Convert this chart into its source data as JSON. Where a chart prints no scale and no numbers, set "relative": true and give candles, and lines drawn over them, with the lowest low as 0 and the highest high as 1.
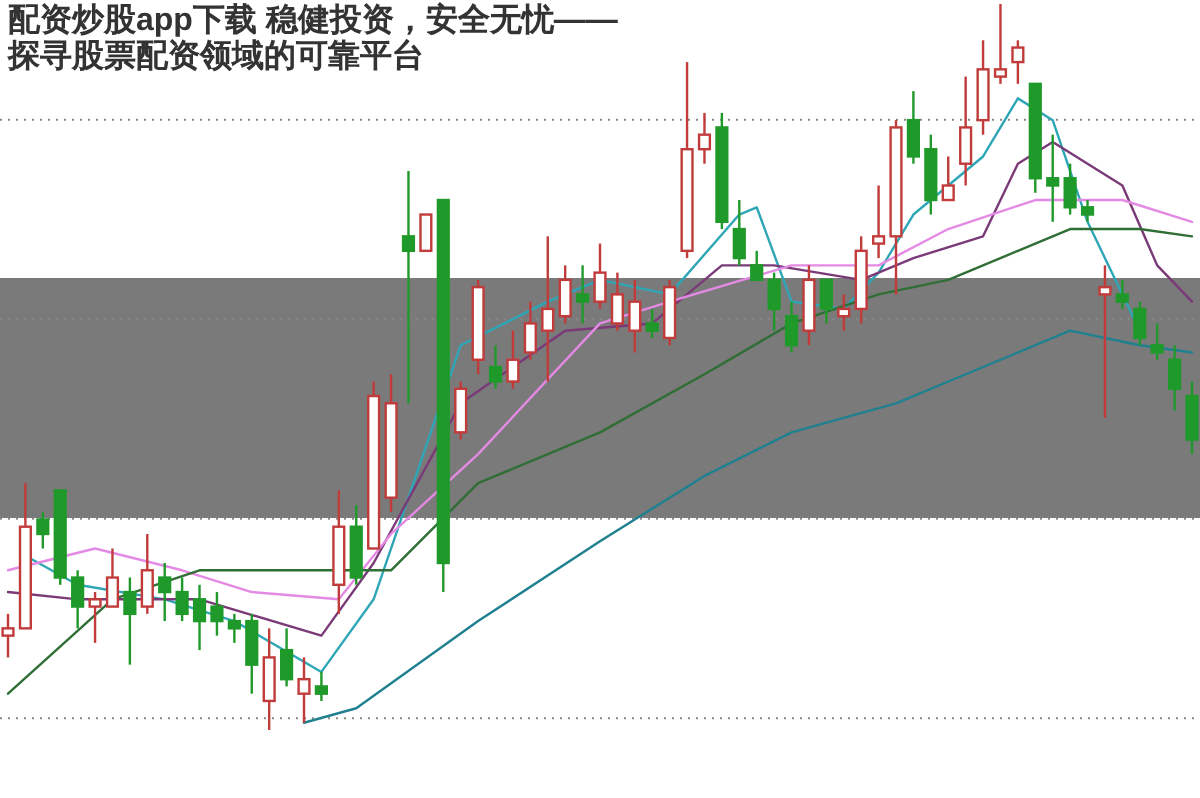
{
  "chart_data": {
    "type": "candlestick",
    "title": "配资炒股app下载 稳健投资，安全无忧——探寻股票配资领域的可靠平台",
    "relative": true,
    "grid": "y",
    "categories": [
      null,
      null,
      null,
      null,
      null,
      null,
      null,
      null,
      null,
      null,
      null,
      null,
      null,
      null,
      null,
      null,
      null,
      null,
      null,
      null,
      null,
      null,
      null,
      null,
      null,
      null,
      null,
      null,
      null,
      null,
      null,
      null,
      null,
      null,
      null,
      null,
      null,
      null,
      null,
      null,
      null,
      null,
      null,
      null,
      null,
      null,
      null,
      null,
      null,
      null,
      null,
      null,
      null,
      null,
      null,
      null,
      null,
      null,
      null,
      null,
      null,
      null,
      null,
      null,
      null,
      null,
      null,
      null,
      null
    ],
    "ohlc": [
      [
        0.13,
        0.16,
        0.1,
        0.14
      ],
      [
        0.14,
        0.34,
        0.14,
        0.28
      ],
      [
        0.29,
        0.3,
        0.25,
        0.27
      ],
      [
        0.33,
        0.33,
        0.2,
        0.21
      ],
      [
        0.21,
        0.22,
        0.14,
        0.17
      ],
      [
        0.17,
        0.19,
        0.12,
        0.18
      ],
      [
        0.17,
        0.25,
        0.17,
        0.21
      ],
      [
        0.19,
        0.21,
        0.09,
        0.16
      ],
      [
        0.17,
        0.27,
        0.16,
        0.22
      ],
      [
        0.21,
        0.23,
        0.15,
        0.19
      ],
      [
        0.19,
        0.21,
        0.15,
        0.16
      ],
      [
        0.18,
        0.2,
        0.11,
        0.15
      ],
      [
        0.17,
        0.19,
        0.13,
        0.15
      ],
      [
        0.15,
        0.16,
        0.12,
        0.14
      ],
      [
        0.15,
        0.16,
        0.05,
        0.09
      ],
      [
        0.04,
        0.14,
        0,
        0.1
      ],
      [
        0.11,
        0.14,
        0.06,
        0.07
      ],
      [
        0.05,
        0.1,
        0.01,
        0.07
      ],
      [
        0.06,
        0.08,
        0.04,
        0.05
      ],
      [
        0.2,
        0.33,
        0.16,
        0.28
      ],
      [
        0.28,
        0.31,
        0.2,
        0.21
      ],
      [
        0.25,
        0.48,
        0.25,
        0.46
      ],
      [
        0.32,
        0.49,
        0.3,
        0.45
      ],
      [
        0.68,
        0.77,
        0.45,
        0.66
      ],
      [
        0.66,
        0.71,
        0.66,
        0.71
      ],
      [
        0.73,
        0.73,
        0.19,
        0.23
      ],
      [
        0.41,
        0.48,
        0.4,
        0.47
      ],
      [
        0.51,
        0.62,
        0.49,
        0.61
      ],
      [
        0.5,
        0.53,
        0.47,
        0.48
      ],
      [
        0.48,
        0.55,
        0.47,
        0.51
      ],
      [
        0.52,
        0.59,
        0.51,
        0.56
      ],
      [
        0.55,
        0.68,
        0.48,
        0.58
      ],
      [
        0.57,
        0.64,
        0.56,
        0.62
      ],
      [
        0.6,
        0.64,
        0.56,
        0.59
      ],
      [
        0.59,
        0.67,
        0.58,
        0.63
      ],
      [
        0.56,
        0.63,
        0.55,
        0.6
      ],
      [
        0.55,
        0.62,
        0.52,
        0.59
      ],
      [
        0.56,
        0.58,
        0.54,
        0.55
      ],
      [
        0.54,
        0.62,
        0.53,
        0.61
      ],
      [
        0.66,
        0.92,
        0.65,
        0.8
      ],
      [
        0.8,
        0.85,
        0.78,
        0.82
      ],
      [
        0.83,
        0.85,
        0.69,
        0.7
      ],
      [
        0.69,
        0.73,
        0.64,
        0.65
      ],
      [
        0.64,
        0.66,
        0.62,
        0.62
      ],
      [
        0.62,
        0.63,
        0.55,
        0.58
      ],
      [
        0.57,
        0.59,
        0.52,
        0.53
      ],
      [
        0.55,
        0.64,
        0.53,
        0.62
      ],
      [
        0.62,
        0.62,
        0.56,
        0.58
      ],
      [
        0.57,
        0.6,
        0.55,
        0.58
      ],
      [
        0.58,
        0.68,
        0.56,
        0.66
      ],
      [
        0.67,
        0.75,
        0.65,
        0.68
      ],
      [
        0.68,
        0.84,
        0.6,
        0.83
      ],
      [
        0.84,
        0.88,
        0.78,
        0.79
      ],
      [
        0.8,
        0.82,
        0.71,
        0.73
      ],
      [
        0.73,
        0.79,
        0.73,
        0.75
      ],
      [
        0.78,
        0.9,
        0.75,
        0.83
      ],
      [
        0.84,
        0.95,
        0.82,
        0.91
      ],
      [
        0.9,
        1,
        0.89,
        0.91
      ],
      [
        0.92,
        0.95,
        0.89,
        0.94
      ],
      [
        0.89,
        0.89,
        0.74,
        0.76
      ],
      [
        0.76,
        0.82,
        0.7,
        0.75
      ],
      [
        0.76,
        0.78,
        0.71,
        0.72
      ],
      [
        0.72,
        0.73,
        0.7,
        0.71
      ],
      [
        0.6,
        0.64,
        0.43,
        0.61
      ],
      [
        0.6,
        0.62,
        0.58,
        0.59
      ],
      [
        0.58,
        0.59,
        0.53,
        0.54
      ],
      [
        0.53,
        0.56,
        0.51,
        0.52
      ],
      [
        0.51,
        0.53,
        0.44,
        0.47
      ],
      [
        0.46,
        0.48,
        0.38,
        0.4
      ]
    ],
    "series": [
      {
        "type": "line",
        "color": "#2ea6b6",
        "values": [
          null,
          0.24,
          null,
          null,
          0.2,
          null,
          null,
          null,
          null,
          0.18,
          null,
          null,
          null,
          0.15,
          null,
          null,
          null,
          null,
          0.08,
          null,
          null,
          0.18,
          null,
          null,
          null,
          null,
          0.53,
          null,
          null,
          null,
          null,
          0.59,
          null,
          null,
          0.62,
          null,
          null,
          null,
          0.6,
          null,
          null,
          null,
          0.71,
          0.72,
          null,
          0.59,
          null,
          null,
          0.58,
          null,
          0.63,
          null,
          0.71,
          null,
          null,
          null,
          0.79,
          null,
          0.87,
          null,
          0.84,
          null,
          0.7,
          null,
          null,
          0.55,
          null,
          null,
          null
        ]
      },
      {
        "type": "line",
        "color": "#7a3a78",
        "values": [
          0.19,
          null,
          null,
          null,
          0.18,
          null,
          null,
          null,
          null,
          null,
          null,
          0.18,
          null,
          null,
          null,
          null,
          null,
          null,
          0.13,
          null,
          null,
          0.23,
          null,
          null,
          null,
          null,
          0.45,
          null,
          null,
          null,
          null,
          null,
          0.55,
          null,
          null,
          null,
          null,
          0.56,
          null,
          null,
          null,
          0.64,
          null,
          null,
          0.64,
          null,
          null,
          null,
          null,
          0.62,
          null,
          null,
          0.65,
          null,
          null,
          null,
          0.68,
          null,
          0.78,
          null,
          0.81,
          null,
          null,
          null,
          0.75,
          null,
          0.64,
          null,
          0.59
        ]
      },
      {
        "type": "line",
        "color": "#e48ae4",
        "values": [
          0.22,
          null,
          null,
          null,
          null,
          0.25,
          null,
          null,
          null,
          null,
          0.22,
          null,
          null,
          null,
          0.19,
          null,
          null,
          null,
          null,
          0.18,
          null,
          null,
          0.27,
          null,
          null,
          null,
          null,
          0.38,
          null,
          null,
          null,
          null,
          null,
          null,
          0.56,
          null,
          null,
          null,
          0.59,
          null,
          null,
          null,
          null,
          null,
          null,
          0.64,
          null,
          null,
          null,
          null,
          0.64,
          null,
          null,
          null,
          0.69,
          null,
          null,
          null,
          null,
          0.73,
          null,
          null,
          null,
          null,
          0.73,
          null,
          null,
          null,
          0.7
        ]
      },
      {
        "type": "line",
        "color": "#2f6e35",
        "values": [
          0.05,
          null,
          null,
          null,
          null,
          null,
          0.18,
          null,
          null,
          null,
          null,
          0.22,
          null,
          null,
          null,
          null,
          null,
          null,
          0.22,
          null,
          null,
          null,
          0.22,
          null,
          null,
          null,
          null,
          0.34,
          null,
          null,
          null,
          null,
          null,
          null,
          0.41,
          null,
          null,
          null,
          null,
          null,
          0.49,
          null,
          null,
          null,
          null,
          0.56,
          null,
          null,
          null,
          null,
          0.6,
          null,
          null,
          null,
          0.62,
          null,
          null,
          null,
          0.66,
          null,
          null,
          0.69,
          null,
          null,
          null,
          0.69,
          null,
          null,
          0.68
        ]
      },
      {
        "type": "line",
        "color": "#1f8090",
        "values": [
          null,
          null,
          null,
          null,
          null,
          null,
          null,
          null,
          null,
          null,
          null,
          null,
          null,
          null,
          null,
          null,
          null,
          0.01,
          null,
          null,
          0.03,
          null,
          null,
          null,
          null,
          null,
          null,
          0.15,
          null,
          null,
          null,
          null,
          null,
          null,
          0.26,
          null,
          null,
          null,
          null,
          null,
          0.35,
          null,
          null,
          null,
          null,
          0.41,
          null,
          null,
          null,
          null,
          null,
          0.45,
          null,
          null,
          null,
          null,
          null,
          0.51,
          null,
          null,
          null,
          0.55,
          null,
          null,
          null,
          0.53,
          null,
          null,
          0.52
        ]
      }
    ]
  }
}
